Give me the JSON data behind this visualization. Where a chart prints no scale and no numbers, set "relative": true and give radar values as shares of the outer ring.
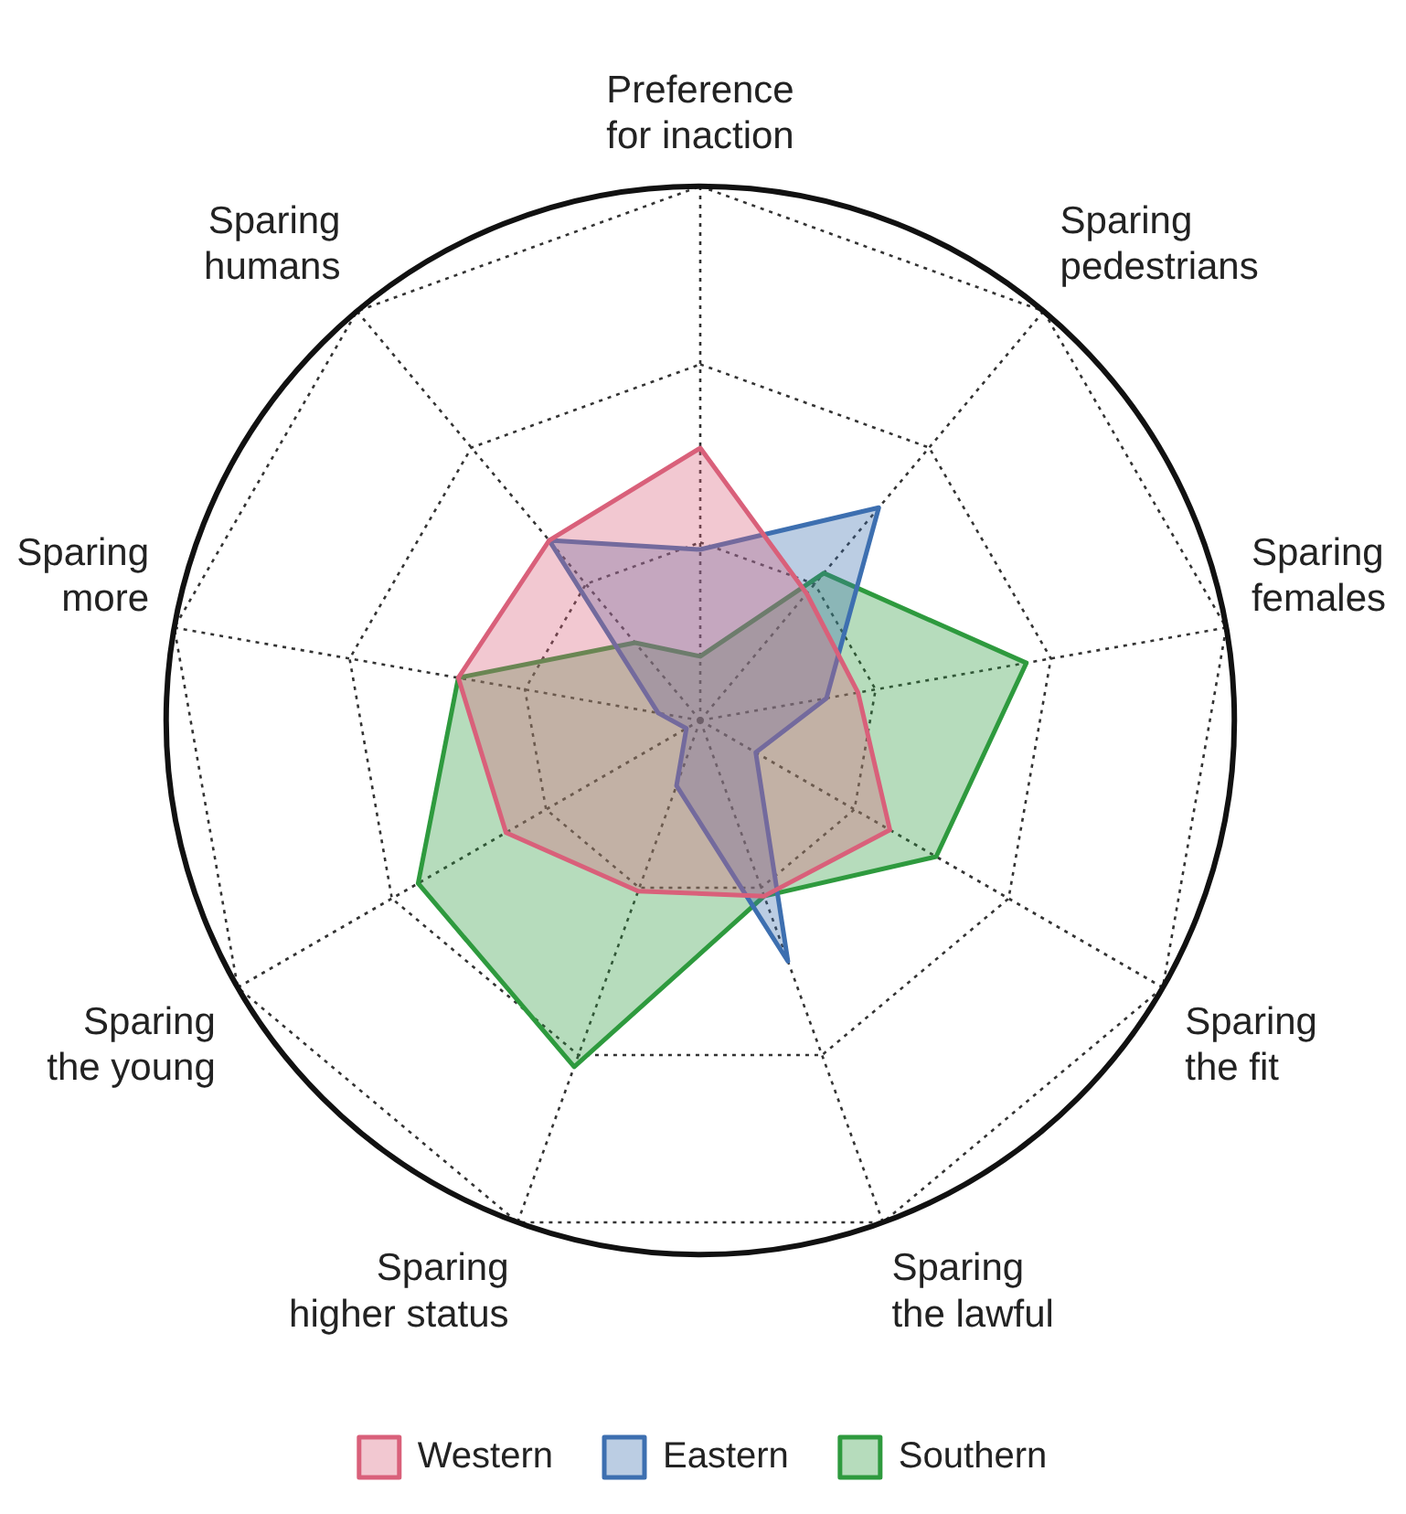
{
  "chart_data": {
    "type": "radar",
    "relative": true,
    "grid": true,
    "legend": "bottom",
    "categories": [
      "Preference for inaction",
      "Sparing pedestrians",
      "Sparing females",
      "Sparing the fit",
      "Sparing the lawful",
      "Sparing higher status",
      "Sparing the young",
      "Sparing more",
      "Sparing humans"
    ],
    "series": [
      {
        "name": "Western",
        "color": "#d9607a",
        "values": [
          0.51,
          0.31,
          0.3,
          0.41,
          0.35,
          0.34,
          0.42,
          0.46,
          0.44
        ]
      },
      {
        "name": "Eastern",
        "color": "#3d6fb0",
        "values": [
          0.32,
          0.52,
          0.24,
          0.12,
          0.48,
          0.13,
          0.03,
          0.08,
          0.44
        ]
      },
      {
        "name": "Southern",
        "color": "#2e9a3e",
        "values": [
          0.12,
          0.36,
          0.62,
          0.51,
          0.35,
          0.69,
          0.61,
          0.46,
          0.19
        ]
      }
    ]
  }
}
